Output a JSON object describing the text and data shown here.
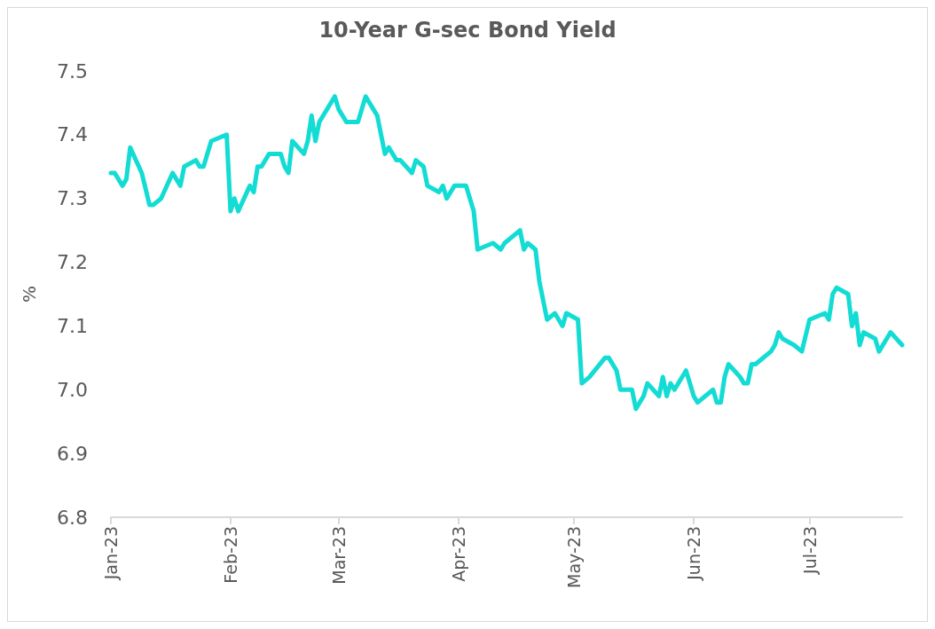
{
  "chart_data": {
    "type": "line",
    "title": "10-Year G-sec Bond Yield",
    "ylabel": "%",
    "grid": false,
    "marker": "none",
    "line_style": "solid",
    "xlim": [
      "2023-01-01",
      "2023-07-25"
    ],
    "xticks": [
      {
        "value": "2023-01-01",
        "label": "Jan-23"
      },
      {
        "value": "2023-02-01",
        "label": "Feb-23"
      },
      {
        "value": "2023-03-01",
        "label": "Mar-23"
      },
      {
        "value": "2023-04-01",
        "label": "Apr-23"
      },
      {
        "value": "2023-05-01",
        "label": "May-23"
      },
      {
        "value": "2023-06-01",
        "label": "Jun-23"
      },
      {
        "value": "2023-07-01",
        "label": "Jul-23"
      }
    ],
    "ylim": [
      6.8,
      7.5
    ],
    "yticks": [
      6.8,
      6.9,
      {
        "value": 7,
        "label": "7.0"
      },
      7.1,
      7.2,
      7.3,
      7.4,
      7.5
    ],
    "x": [
      "2023-01-01",
      "2023-01-02",
      "2023-01-04",
      "2023-01-05",
      "2023-01-06",
      "2023-01-09",
      "2023-01-11",
      "2023-01-12",
      "2023-01-14",
      "2023-01-17",
      "2023-01-19",
      "2023-01-20",
      "2023-01-23",
      "2023-01-24",
      "2023-01-25",
      "2023-01-27",
      "2023-01-31",
      "2023-02-01",
      "2023-02-02",
      "2023-02-03",
      "2023-02-06",
      "2023-02-07",
      "2023-02-08",
      "2023-02-09",
      "2023-02-11",
      "2023-02-13",
      "2023-02-14",
      "2023-02-15",
      "2023-02-16",
      "2023-02-17",
      "2023-02-20",
      "2023-02-21",
      "2023-02-22",
      "2023-02-23",
      "2023-02-24",
      "2023-02-28",
      "2023-03-01",
      "2023-03-02",
      "2023-03-03",
      "2023-03-06",
      "2023-03-08",
      "2023-03-10",
      "2023-03-11",
      "2023-03-13",
      "2023-03-14",
      "2023-03-16",
      "2023-03-17",
      "2023-03-20",
      "2023-03-21",
      "2023-03-23",
      "2023-03-24",
      "2023-03-27",
      "2023-03-28",
      "2023-03-29",
      "2023-03-31",
      "2023-04-03",
      "2023-04-05",
      "2023-04-06",
      "2023-04-10",
      "2023-04-12",
      "2023-04-13",
      "2023-04-17",
      "2023-04-18",
      "2023-04-19",
      "2023-04-21",
      "2023-04-22",
      "2023-04-24",
      "2023-04-26",
      "2023-04-28",
      "2023-04-29",
      "2023-05-02",
      "2023-05-03",
      "2023-05-05",
      "2023-05-09",
      "2023-05-10",
      "2023-05-12",
      "2023-05-13",
      "2023-05-16",
      "2023-05-17",
      "2023-05-19",
      "2023-05-20",
      "2023-05-23",
      "2023-05-24",
      "2023-05-25",
      "2023-05-26",
      "2023-05-27",
      "2023-05-30",
      "2023-06-01",
      "2023-06-02",
      "2023-06-06",
      "2023-06-07",
      "2023-06-08",
      "2023-06-09",
      "2023-06-10",
      "2023-06-13",
      "2023-06-14",
      "2023-06-15",
      "2023-06-16",
      "2023-06-17",
      "2023-06-21",
      "2023-06-22",
      "2023-06-23",
      "2023-06-24",
      "2023-06-27",
      "2023-06-29",
      "2023-07-01",
      "2023-07-05",
      "2023-07-06",
      "2023-07-07",
      "2023-07-08",
      "2023-07-11",
      "2023-07-12",
      "2023-07-13",
      "2023-07-14",
      "2023-07-15",
      "2023-07-18",
      "2023-07-19",
      "2023-07-21",
      "2023-07-22",
      "2023-07-25"
    ],
    "series": [
      {
        "color": "#13dcd4",
        "values": [
          7.34,
          7.34,
          7.32,
          7.33,
          7.38,
          7.34,
          7.29,
          7.29,
          7.3,
          7.34,
          7.32,
          7.35,
          7.36,
          7.35,
          7.35,
          7.39,
          7.4,
          7.28,
          7.3,
          7.28,
          7.32,
          7.31,
          7.35,
          7.35,
          7.37,
          7.37,
          7.37,
          7.35,
          7.34,
          7.39,
          7.37,
          7.39,
          7.43,
          7.39,
          7.42,
          7.46,
          7.44,
          7.43,
          7.42,
          7.42,
          7.46,
          7.44,
          7.43,
          7.37,
          7.38,
          7.36,
          7.36,
          7.34,
          7.36,
          7.35,
          7.32,
          7.31,
          7.32,
          7.3,
          7.32,
          7.32,
          7.28,
          7.22,
          7.23,
          7.22,
          7.23,
          7.25,
          7.22,
          7.23,
          7.22,
          7.17,
          7.11,
          7.12,
          7.1,
          7.12,
          7.11,
          7.01,
          7.02,
          7.05,
          7.05,
          7.03,
          7.0,
          7.0,
          6.97,
          6.99,
          7.01,
          6.99,
          7.02,
          6.99,
          7.01,
          7.0,
          7.03,
          6.99,
          6.98,
          7.0,
          6.98,
          6.98,
          7.02,
          7.04,
          7.02,
          7.01,
          7.01,
          7.04,
          7.04,
          7.06,
          7.07,
          7.09,
          7.08,
          7.07,
          7.06,
          7.11,
          7.12,
          7.11,
          7.15,
          7.16,
          7.15,
          7.1,
          7.12,
          7.07,
          7.09,
          7.08,
          7.06,
          7.08,
          7.09,
          7.07
        ]
      }
    ]
  }
}
